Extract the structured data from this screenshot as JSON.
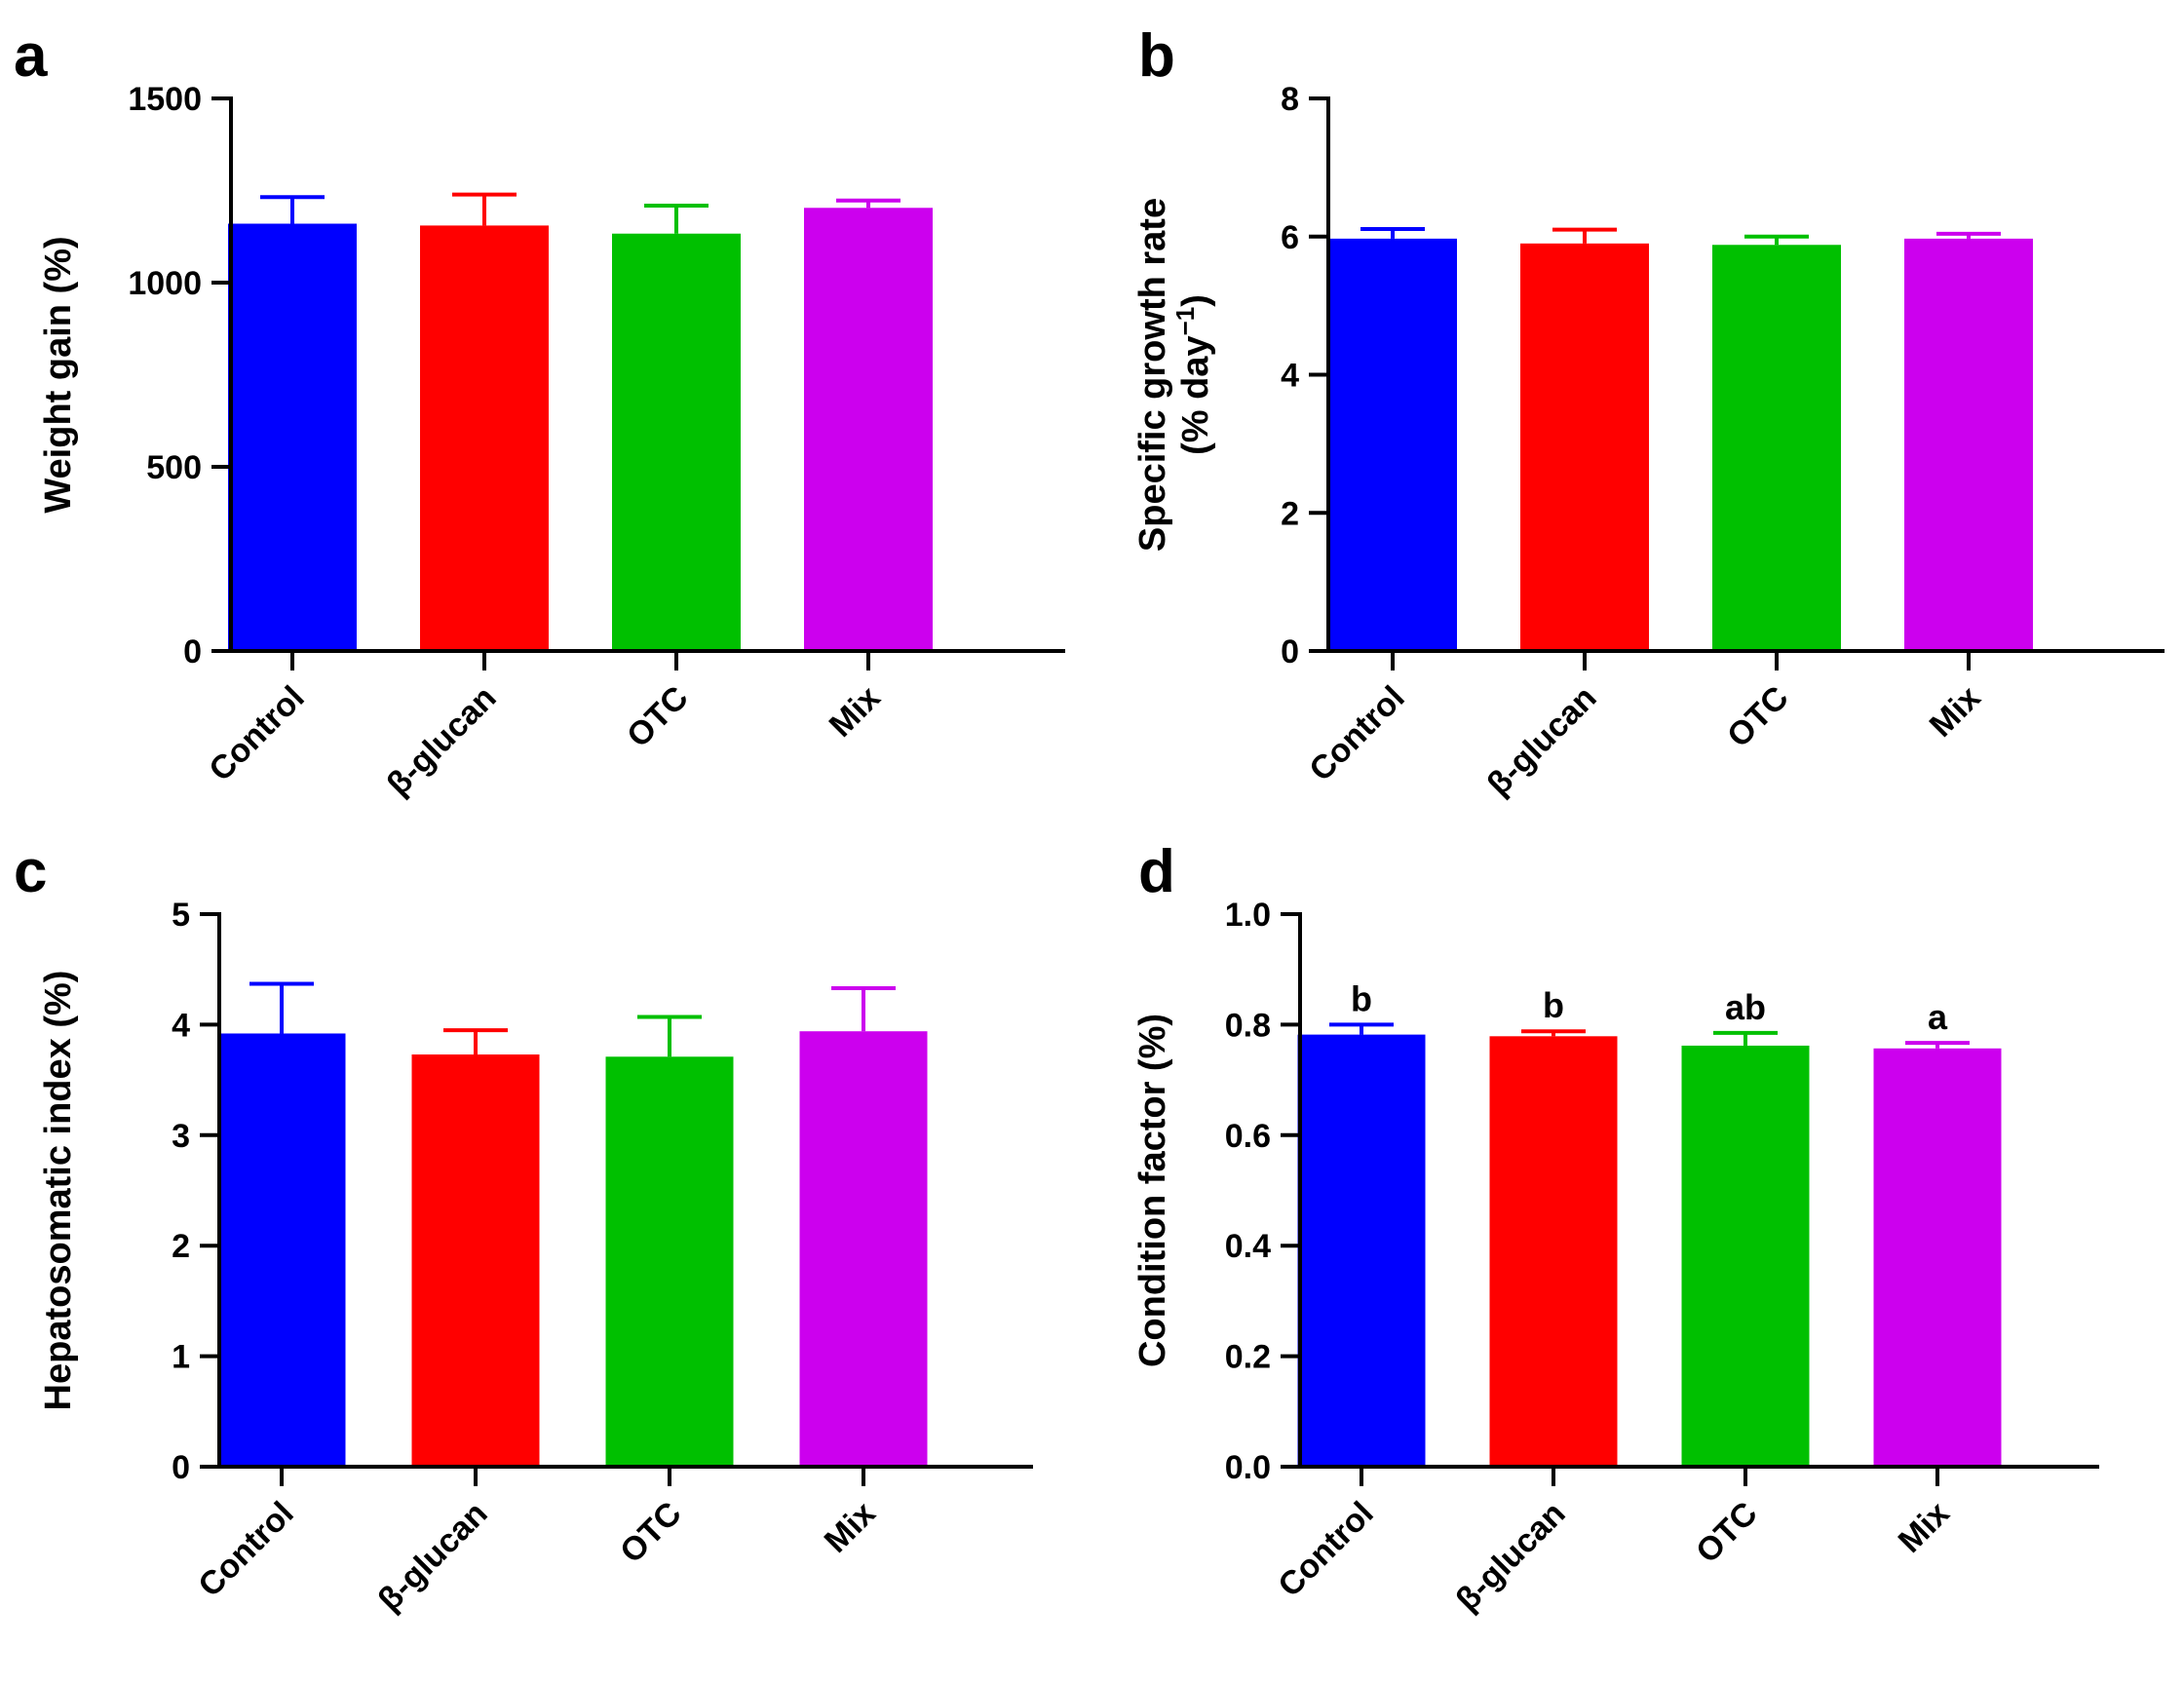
{
  "chart_data": [
    {
      "panel": "a",
      "type": "bar",
      "categories": [
        "Control",
        "β-glucan",
        "OTC",
        "Mix"
      ],
      "values": [
        1160,
        1155,
        1133,
        1203
      ],
      "errors": [
        72,
        84,
        76,
        20
      ],
      "colors": [
        "#0000ff",
        "#ff0000",
        "#00c000",
        "#cc00ee"
      ],
      "ylabel": "Weight gain (%)",
      "ylim": [
        0,
        1500
      ],
      "yticks": [
        0,
        500,
        1000,
        1500
      ],
      "ytick_labels": [
        "0",
        "500",
        "1000",
        "1500"
      ],
      "annotations": []
    },
    {
      "panel": "b",
      "type": "bar",
      "categories": [
        "Control",
        "β-glucan",
        "OTC",
        "Mix"
      ],
      "values": [
        5.97,
        5.9,
        5.88,
        5.97
      ],
      "errors": [
        0.14,
        0.2,
        0.12,
        0.07
      ],
      "colors": [
        "#0000ff",
        "#ff0000",
        "#00c000",
        "#cc00ee"
      ],
      "ylabel": "Specific growth rate",
      "ylabel2": "(% day",
      "ylabel2_sup": "−1",
      "ylabel2_end": ")",
      "ylim": [
        0,
        8
      ],
      "yticks": [
        0,
        2,
        4,
        6,
        8
      ],
      "ytick_labels": [
        "0",
        "2",
        "4",
        "6",
        "8"
      ],
      "annotations": []
    },
    {
      "panel": "c",
      "type": "bar",
      "categories": [
        "Control",
        "β-glucan",
        "OTC",
        "Mix"
      ],
      "values": [
        3.92,
        3.73,
        3.71,
        3.94
      ],
      "errors": [
        0.45,
        0.22,
        0.36,
        0.39
      ],
      "colors": [
        "#0000ff",
        "#ff0000",
        "#00c000",
        "#cc00ee"
      ],
      "ylabel": "Hepatosomatic index (%)",
      "ylim": [
        0,
        5
      ],
      "yticks": [
        0,
        1,
        2,
        3,
        4,
        5
      ],
      "ytick_labels": [
        "0",
        "1",
        "2",
        "3",
        "4",
        "5"
      ],
      "annotations": []
    },
    {
      "panel": "d",
      "type": "bar",
      "categories": [
        "Control",
        "β-glucan",
        "OTC",
        "Mix"
      ],
      "values": [
        0.782,
        0.779,
        0.762,
        0.757
      ],
      "errors": [
        0.018,
        0.009,
        0.023,
        0.01
      ],
      "colors": [
        "#0000ff",
        "#ff0000",
        "#00c000",
        "#cc00ee"
      ],
      "ylabel": "Condition factor (%)",
      "ylim": [
        0,
        1.0
      ],
      "yticks": [
        0,
        0.2,
        0.4,
        0.6,
        0.8,
        1.0
      ],
      "ytick_labels": [
        "0.0",
        "0.2",
        "0.4",
        "0.6",
        "0.8",
        "1.0"
      ],
      "annotations": [
        "b",
        "b",
        "ab",
        "a"
      ]
    }
  ]
}
